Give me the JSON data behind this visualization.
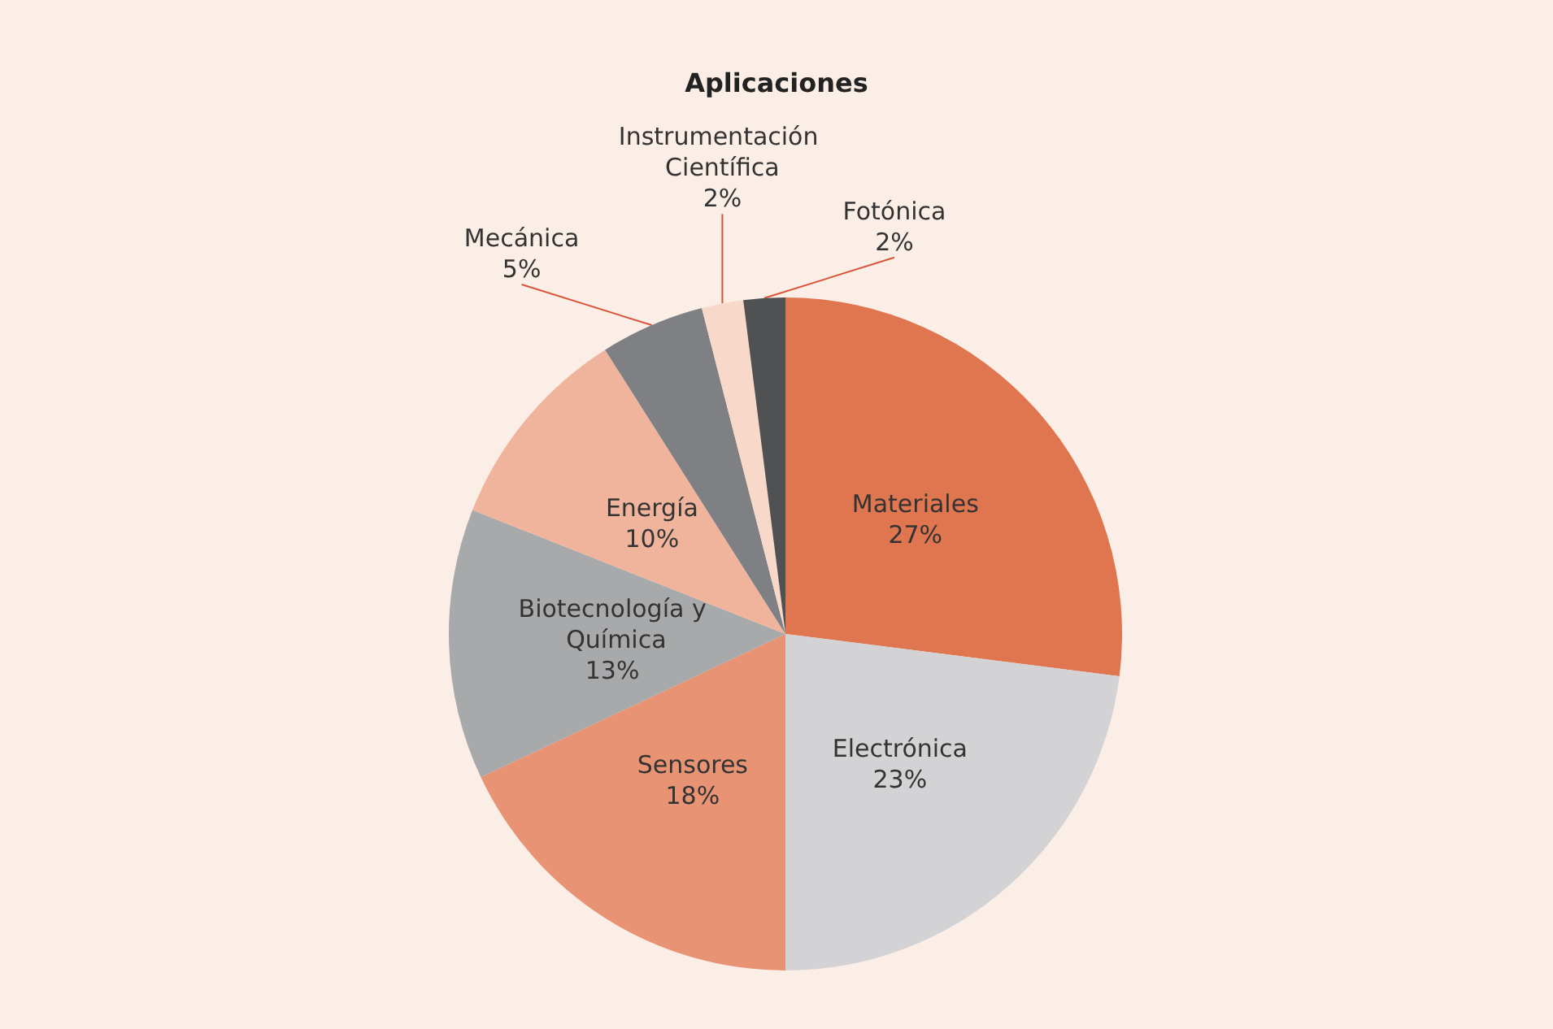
{
  "chart_data": {
    "type": "pie",
    "title": "Aplicaciones",
    "categories": [
      "Materiales",
      "Electrónica",
      "Sensores",
      "Biotecnología y Química",
      "Energía",
      "Mecánica",
      "Instrumentación Científica",
      "Fotónica"
    ],
    "values": [
      27,
      23,
      18,
      13,
      10,
      5,
      2,
      2
    ],
    "value_labels": [
      "27%",
      "23%",
      "18%",
      "13%",
      "10%",
      "5%",
      "2%",
      "2%"
    ],
    "colors": [
      "#e07650",
      "#d3d3d5",
      "#e89474",
      "#a8a9ab",
      "#f0b49c",
      "#7f8083",
      "#f8d8c8",
      "#505153"
    ],
    "legend": false
  }
}
